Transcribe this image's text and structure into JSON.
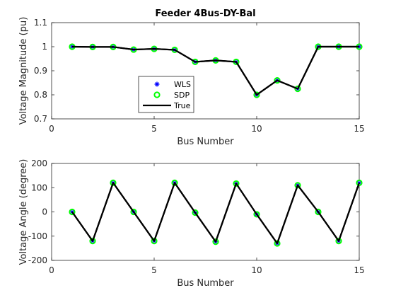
{
  "chart_data": [
    {
      "type": "line",
      "title": "Feeder 4Bus-DY-Bal",
      "xlabel": "Bus Number",
      "ylabel": "Voltage Magnitude (pu)",
      "xlim": [
        0,
        15
      ],
      "ylim": [
        0.7,
        1.1
      ],
      "xticks": [
        0,
        5,
        10,
        15
      ],
      "yticks": [
        0.7,
        0.8,
        0.9,
        1,
        1.1
      ],
      "xtick_labels": [
        "0",
        "5",
        "10",
        "15"
      ],
      "ytick_labels": [
        "0.7",
        "0.8",
        "0.9",
        "1",
        "1.1"
      ],
      "grid": false,
      "legend_position": "inside-lower-center",
      "x": [
        1,
        2,
        3,
        4,
        5,
        6,
        7,
        8,
        9,
        10,
        11,
        12,
        13,
        14,
        15
      ],
      "series": [
        {
          "name": "WLS",
          "style": "asterisk",
          "color": "#0000ff",
          "values": [
            1.0,
            0.999,
            0.999,
            0.988,
            0.991,
            0.987,
            0.937,
            0.943,
            0.937,
            0.8,
            0.86,
            0.825,
            1.0,
            1.0,
            1.0
          ]
        },
        {
          "name": "SDP",
          "style": "circle",
          "color": "#00ff00",
          "values": [
            1.0,
            0.999,
            0.999,
            0.988,
            0.991,
            0.987,
            0.937,
            0.943,
            0.937,
            0.8,
            0.86,
            0.825,
            1.0,
            1.0,
            1.0
          ]
        },
        {
          "name": "True",
          "style": "line",
          "color": "#000000",
          "values": [
            1.0,
            0.999,
            0.999,
            0.988,
            0.991,
            0.987,
            0.937,
            0.943,
            0.937,
            0.8,
            0.86,
            0.825,
            1.0,
            1.0,
            1.0
          ]
        }
      ]
    },
    {
      "type": "line",
      "title": "",
      "xlabel": "Bus Number",
      "ylabel": "Voltage Angle (degree)",
      "xlim": [
        0,
        15
      ],
      "ylim": [
        -200,
        200
      ],
      "xticks": [
        0,
        5,
        10,
        15
      ],
      "yticks": [
        -200,
        -100,
        0,
        100,
        200
      ],
      "xtick_labels": [
        "0",
        "5",
        "10",
        "15"
      ],
      "ytick_labels": [
        "-200",
        "-100",
        "0",
        "100",
        "200"
      ],
      "grid": false,
      "x": [
        1,
        2,
        3,
        4,
        5,
        6,
        7,
        8,
        9,
        10,
        11,
        12,
        13,
        14,
        15
      ],
      "series": [
        {
          "name": "WLS",
          "style": "asterisk",
          "color": "#0000ff",
          "values": [
            0,
            -120,
            120,
            0,
            -120,
            120,
            -3,
            -123,
            117,
            -10,
            -130,
            110,
            0,
            -120,
            120
          ]
        },
        {
          "name": "SDP",
          "style": "circle",
          "color": "#00ff00",
          "values": [
            0,
            -120,
            120,
            0,
            -120,
            120,
            -3,
            -123,
            117,
            -10,
            -130,
            110,
            0,
            -120,
            120
          ]
        },
        {
          "name": "True",
          "style": "line",
          "color": "#000000",
          "values": [
            0,
            -120,
            120,
            0,
            -120,
            120,
            -3,
            -123,
            117,
            -10,
            -130,
            110,
            0,
            -120,
            120
          ]
        }
      ]
    }
  ]
}
